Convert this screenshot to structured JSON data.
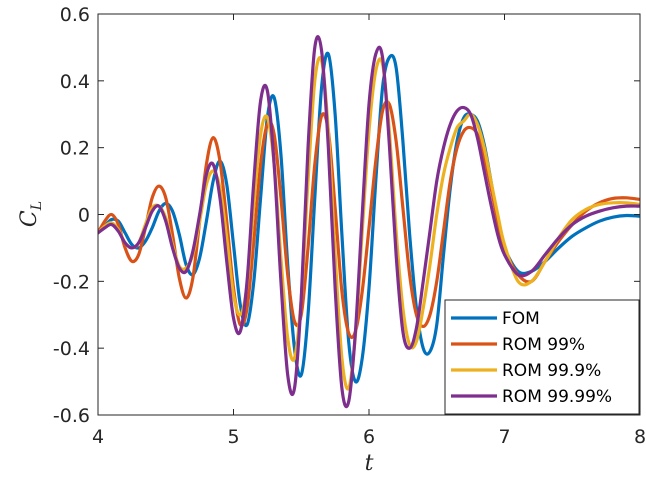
{
  "chart_data": {
    "type": "line",
    "xlabel": "t",
    "ylabel": "C",
    "ylabel_subscript": "L",
    "xlim": [
      4,
      8
    ],
    "ylim": [
      -0.6,
      0.6
    ],
    "x_ticks": [
      4,
      5,
      6,
      7,
      8
    ],
    "x_tick_labels": [
      "4",
      "5",
      "6",
      "7",
      "8"
    ],
    "y_ticks": [
      -0.6,
      -0.4,
      -0.2,
      0,
      0.2,
      0.4,
      0.6
    ],
    "y_tick_labels": [
      "-0.6",
      "-0.4",
      "-0.2",
      "0",
      "0.2",
      "0.4",
      "0.6"
    ],
    "grid": false,
    "legend_position": "bottom-right",
    "x": [
      4.0,
      4.05,
      4.1,
      4.15,
      4.2,
      4.25,
      4.3,
      4.35,
      4.4,
      4.45,
      4.5,
      4.55,
      4.6,
      4.65,
      4.7,
      4.75,
      4.8,
      4.85,
      4.9,
      4.95,
      5.0,
      5.05,
      5.1,
      5.15,
      5.2,
      5.25,
      5.3,
      5.35,
      5.4,
      5.45,
      5.5,
      5.55,
      5.6,
      5.65,
      5.7,
      5.75,
      5.8,
      5.85,
      5.9,
      5.95,
      6.0,
      6.05,
      6.1,
      6.15,
      6.2,
      6.25,
      6.3,
      6.35,
      6.4,
      6.45,
      6.5,
      6.55,
      6.6,
      6.65,
      6.7,
      6.75,
      6.8,
      6.85,
      6.9,
      6.95,
      7.0,
      7.1,
      7.2,
      7.3,
      7.4,
      7.5,
      7.6,
      7.7,
      7.8,
      7.9,
      8.0
    ],
    "series": [
      {
        "name": "FOM",
        "color": "#0072BD",
        "values": [
          -0.055,
          -0.035,
          -0.015,
          -0.02,
          -0.055,
          -0.09,
          -0.1,
          -0.08,
          -0.04,
          0.01,
          0.033,
          0.01,
          -0.06,
          -0.15,
          -0.18,
          -0.13,
          -0.02,
          0.1,
          0.16,
          0.09,
          -0.09,
          -0.27,
          -0.33,
          -0.2,
          0.05,
          0.29,
          0.35,
          0.18,
          -0.15,
          -0.4,
          -0.48,
          -0.3,
          0.05,
          0.38,
          0.48,
          0.3,
          -0.06,
          -0.38,
          -0.5,
          -0.43,
          -0.22,
          0.1,
          0.38,
          0.47,
          0.44,
          0.22,
          -0.06,
          -0.28,
          -0.4,
          -0.41,
          -0.33,
          -0.12,
          0.08,
          0.22,
          0.29,
          0.3,
          0.28,
          0.21,
          0.1,
          -0.02,
          -0.1,
          -0.17,
          -0.17,
          -0.14,
          -0.1,
          -0.065,
          -0.04,
          -0.02,
          -0.008,
          -0.003,
          -0.005
        ]
      },
      {
        "name": "ROM 99%",
        "color": "#D95319",
        "values": [
          -0.055,
          -0.02,
          0.0,
          -0.03,
          -0.1,
          -0.14,
          -0.12,
          -0.04,
          0.05,
          0.085,
          0.05,
          -0.06,
          -0.19,
          -0.25,
          -0.19,
          -0.02,
          0.15,
          0.23,
          0.16,
          -0.02,
          -0.22,
          -0.33,
          -0.28,
          -0.08,
          0.15,
          0.27,
          0.24,
          0.05,
          -0.18,
          -0.32,
          -0.3,
          -0.1,
          0.15,
          0.295,
          0.25,
          0.02,
          -0.23,
          -0.355,
          -0.35,
          -0.23,
          -0.04,
          0.16,
          0.31,
          0.33,
          0.22,
          0.02,
          -0.18,
          -0.3,
          -0.335,
          -0.3,
          -0.2,
          -0.05,
          0.1,
          0.2,
          0.25,
          0.26,
          0.24,
          0.17,
          0.08,
          -0.02,
          -0.1,
          -0.18,
          -0.2,
          -0.14,
          -0.08,
          -0.03,
          0.01,
          0.035,
          0.048,
          0.05,
          0.045
        ]
      },
      {
        "name": "ROM 99.9%",
        "color": "#EDB120",
        "values": [
          -0.055,
          -0.035,
          -0.025,
          -0.045,
          -0.085,
          -0.1,
          -0.085,
          -0.03,
          0.02,
          0.025,
          -0.01,
          -0.09,
          -0.155,
          -0.16,
          -0.12,
          -0.02,
          0.09,
          0.13,
          0.08,
          -0.07,
          -0.24,
          -0.3,
          -0.21,
          0.03,
          0.24,
          0.29,
          0.15,
          -0.13,
          -0.37,
          -0.43,
          -0.25,
          0.1,
          0.4,
          0.46,
          0.25,
          -0.12,
          -0.43,
          -0.52,
          -0.36,
          -0.05,
          0.25,
          0.43,
          0.45,
          0.25,
          -0.05,
          -0.28,
          -0.39,
          -0.38,
          -0.28,
          -0.15,
          0.0,
          0.12,
          0.2,
          0.26,
          0.28,
          0.3,
          0.27,
          0.2,
          0.1,
          0.0,
          -0.09,
          -0.2,
          -0.2,
          -0.14,
          -0.07,
          -0.015,
          0.015,
          0.03,
          0.035,
          0.035,
          0.03
        ]
      },
      {
        "name": "ROM 99.99%",
        "color": "#7E2F8E",
        "values": [
          -0.055,
          -0.04,
          -0.03,
          -0.05,
          -0.085,
          -0.1,
          -0.085,
          -0.04,
          0.01,
          0.025,
          -0.02,
          -0.1,
          -0.16,
          -0.17,
          -0.11,
          0.0,
          0.12,
          0.15,
          0.05,
          -0.14,
          -0.31,
          -0.35,
          -0.2,
          0.1,
          0.34,
          0.37,
          0.15,
          -0.2,
          -0.48,
          -0.52,
          -0.25,
          0.2,
          0.5,
          0.49,
          0.2,
          -0.22,
          -0.52,
          -0.56,
          -0.35,
          0.0,
          0.33,
          0.48,
          0.47,
          0.21,
          -0.12,
          -0.35,
          -0.4,
          -0.34,
          -0.2,
          -0.05,
          0.1,
          0.2,
          0.27,
          0.31,
          0.32,
          0.3,
          0.23,
          0.13,
          0.03,
          -0.06,
          -0.12,
          -0.18,
          -0.17,
          -0.12,
          -0.07,
          -0.03,
          -0.005,
          0.01,
          0.02,
          0.025,
          0.025
        ]
      }
    ]
  }
}
